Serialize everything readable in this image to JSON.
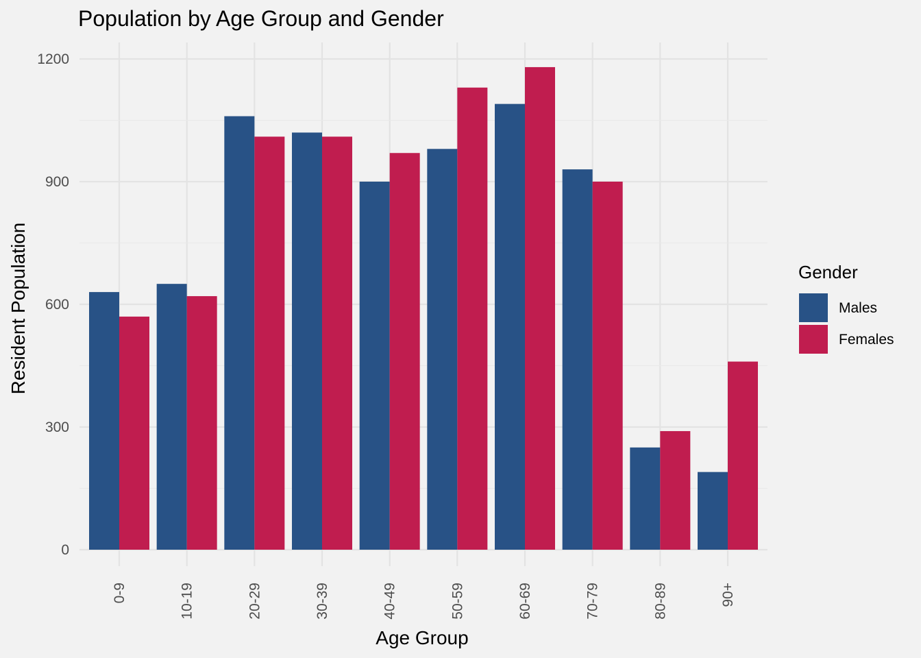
{
  "chart_data": {
    "type": "bar",
    "title": "Population by Age Group and Gender",
    "xlabel": "Age Group",
    "ylabel": "Resident Population",
    "categories": [
      "0-9",
      "10-19",
      "20-29",
      "30-39",
      "40-49",
      "50-59",
      "60-69",
      "70-79",
      "80-89",
      "90+"
    ],
    "series": [
      {
        "name": "Males",
        "color": "#285286",
        "values": [
          630,
          650,
          1060,
          1020,
          900,
          980,
          1090,
          930,
          250,
          190
        ]
      },
      {
        "name": "Females",
        "color": "#c01d4f",
        "values": [
          570,
          620,
          1010,
          1010,
          970,
          1130,
          1180,
          900,
          290,
          460
        ]
      }
    ],
    "ylim": [
      0,
      1200
    ],
    "yticks": [
      0,
      300,
      600,
      900,
      1200
    ],
    "grid": true,
    "legend": {
      "title": "Gender",
      "position": "right"
    }
  }
}
